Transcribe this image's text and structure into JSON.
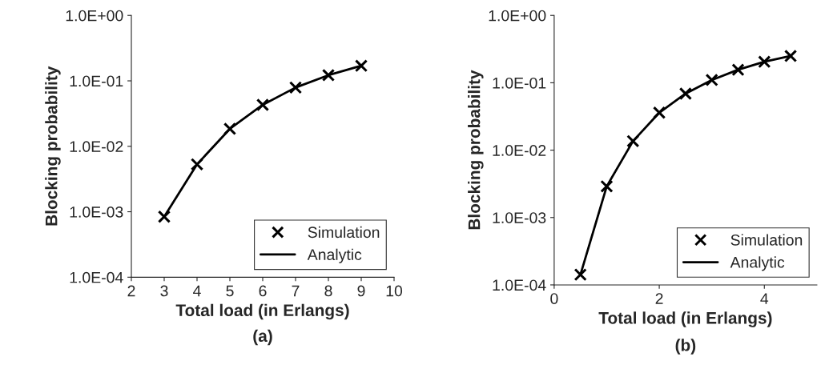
{
  "chart_data": [
    {
      "type": "scatter",
      "xlabel": "Total load (in Erlangs)",
      "ylabel": "Blocking probability",
      "annotations": [
        "(a)"
      ],
      "log": "y",
      "legend": "bottom right",
      "grid": false,
      "x": [
        3,
        4,
        5,
        6,
        7,
        8,
        9
      ],
      "series": [
        {
          "name": "Simulation",
          "marker": "cross",
          "color": "#000000",
          "values": [
            0.00084,
            0.0053,
            0.0185,
            0.043,
            0.079,
            0.122,
            0.17
          ]
        },
        {
          "name": "Analytic",
          "type": "line",
          "marker": "none",
          "line_style": "solid",
          "color": "#000000",
          "values": [
            0.00084,
            0.0053,
            0.0185,
            0.043,
            0.079,
            0.122,
            0.17
          ]
        }
      ],
      "xlim": [
        2,
        10
      ],
      "xticks": [
        2,
        3,
        4,
        5,
        6,
        7,
        8,
        9,
        10
      ],
      "ylim": [
        0.0001,
        1
      ],
      "yticks": [
        {
          "value": 0.0001,
          "label": "1.0E-04"
        },
        {
          "value": 0.001,
          "label": "1.0E-03"
        },
        {
          "value": 0.01,
          "label": "1.0E-02"
        },
        {
          "value": 0.1,
          "label": "1.0E-01"
        },
        {
          "value": 1,
          "label": "1.0E+00"
        }
      ]
    },
    {
      "type": "scatter",
      "xlabel": "Total load (in Erlangs)",
      "ylabel": "Blocking probability",
      "annotations": [
        "(b)"
      ],
      "log": "y",
      "legend": "bottom right",
      "grid": false,
      "x": [
        0.5,
        1,
        1.5,
        2,
        2.5,
        3,
        3.5,
        4,
        4.5
      ],
      "series": [
        {
          "name": "Simulation",
          "marker": "cross",
          "color": "#000000",
          "values": [
            0.000142,
            0.0029,
            0.0136,
            0.036,
            0.069,
            0.11,
            0.156,
            0.205,
            0.25
          ]
        },
        {
          "name": "Analytic",
          "type": "line",
          "marker": "none",
          "line_style": "solid",
          "color": "#000000",
          "values": [
            0.000142,
            0.0029,
            0.0136,
            0.036,
            0.069,
            0.11,
            0.156,
            0.205,
            0.25
          ]
        }
      ],
      "xlim": [
        0,
        5
      ],
      "xticks": [
        0,
        2,
        4
      ],
      "ylim": [
        0.0001,
        1
      ],
      "yticks": [
        {
          "value": 0.0001,
          "label": "1.0E-04"
        },
        {
          "value": 0.001,
          "label": "1.0E-03"
        },
        {
          "value": 0.01,
          "label": "1.0E-02"
        },
        {
          "value": 0.1,
          "label": "1.0E-01"
        },
        {
          "value": 1,
          "label": "1.0E+00"
        }
      ]
    }
  ]
}
